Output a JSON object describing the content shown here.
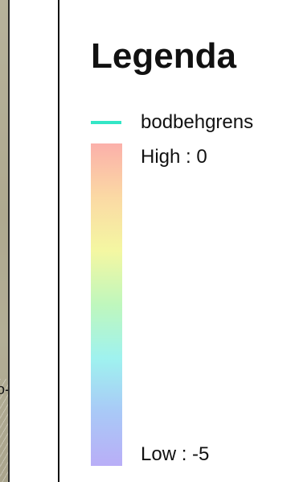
{
  "map_fragment": {
    "mark": "o-"
  },
  "legend": {
    "title": "Legenda",
    "line_item": {
      "label": "bodbehgrens",
      "color": "#33e6c6"
    },
    "ramp": {
      "high_label": "High : 0",
      "low_label": "Low : -5",
      "high_value": 0,
      "low_value": -5,
      "colors": [
        "#fbb0aa",
        "#fbd9a4",
        "#f4f7a2",
        "#bff7bd",
        "#9ff2ef",
        "#a9c9f7",
        "#b9aef7"
      ]
    }
  }
}
